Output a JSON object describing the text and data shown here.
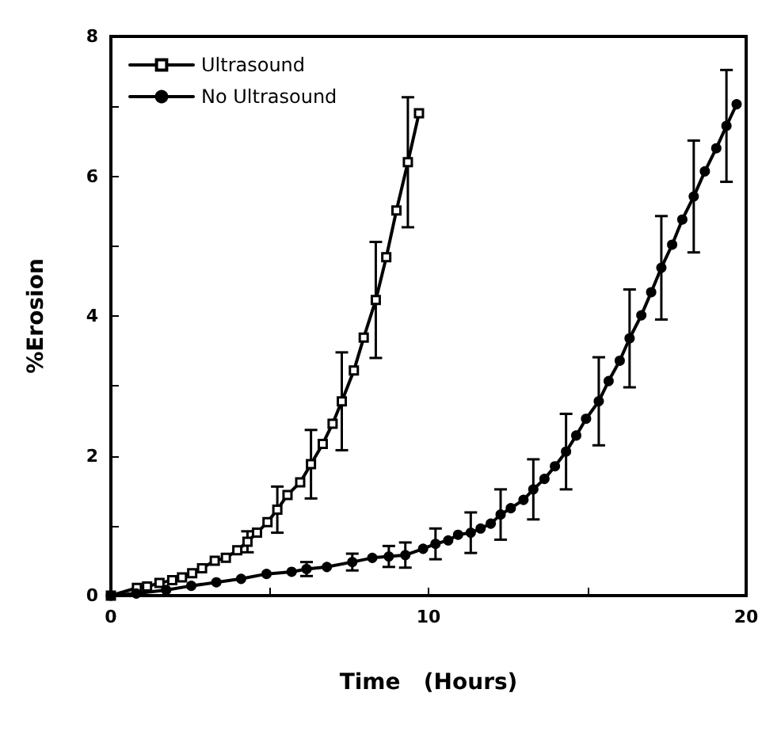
{
  "chart_data": {
    "type": "line",
    "xlabel": "Time   (Hours)",
    "ylabel": "%Erosion",
    "xlim": [
      0,
      20
    ],
    "ylim": [
      0,
      8
    ],
    "xticks": [
      0,
      {
        "value": 5,
        "label": null
      },
      10,
      {
        "value": 15,
        "label": null
      },
      20
    ],
    "yticks": [
      0,
      {
        "value": 1,
        "label": null
      },
      2,
      {
        "value": 3,
        "label": null
      },
      4,
      {
        "value": 5,
        "label": null
      },
      6,
      {
        "value": 7,
        "label": null
      },
      8
    ],
    "grid": false,
    "legend": "top left",
    "line_style": "solid",
    "series": [
      {
        "name": "Ultrasound",
        "color": "#000000",
        "marker": "square",
        "x": [
          0,
          0.82,
          1.14,
          1.53,
          1.93,
          2.24,
          2.56,
          2.87,
          3.27,
          3.62,
          3.98,
          4.3,
          4.6,
          4.93,
          5.24,
          5.56,
          5.96,
          6.3,
          6.67,
          6.98,
          7.27,
          7.65,
          7.96,
          8.34,
          8.67,
          8.99,
          9.35,
          9.7
        ],
        "values": [
          0,
          0.11,
          0.13,
          0.18,
          0.22,
          0.26,
          0.32,
          0.39,
          0.5,
          0.54,
          0.65,
          0.77,
          0.9,
          1.05,
          1.23,
          1.44,
          1.62,
          1.88,
          2.17,
          2.46,
          2.78,
          3.22,
          3.69,
          4.23,
          4.84,
          5.51,
          6.2,
          6.9
        ],
        "errors": [
          null,
          null,
          null,
          null,
          null,
          null,
          null,
          null,
          null,
          null,
          null,
          0.15,
          null,
          null,
          0.33,
          null,
          null,
          0.49,
          null,
          null,
          0.7,
          null,
          null,
          0.83,
          null,
          null,
          0.93,
          null
        ]
      },
      {
        "name": "No Ultrasound",
        "color": "#000000",
        "marker": "circle",
        "x": [
          0,
          0.8,
          1.74,
          2.53,
          3.32,
          4.1,
          4.9,
          5.69,
          6.16,
          6.8,
          7.6,
          8.23,
          8.75,
          9.27,
          9.83,
          10.22,
          10.62,
          10.93,
          11.33,
          11.64,
          11.96,
          12.27,
          12.59,
          12.99,
          13.3,
          13.65,
          13.98,
          14.33,
          14.65,
          14.96,
          15.36,
          15.67,
          16.02,
          16.33,
          16.7,
          17.01,
          17.33,
          17.67,
          17.99,
          18.35,
          18.7,
          19.06,
          19.38,
          19.7
        ],
        "values": [
          0,
          0.03,
          0.08,
          0.14,
          0.19,
          0.24,
          0.31,
          0.34,
          0.38,
          0.41,
          0.48,
          0.54,
          0.56,
          0.58,
          0.67,
          0.74,
          0.79,
          0.87,
          0.9,
          0.96,
          1.03,
          1.16,
          1.25,
          1.37,
          1.52,
          1.67,
          1.85,
          2.06,
          2.29,
          2.53,
          2.78,
          3.07,
          3.36,
          3.68,
          4.01,
          4.34,
          4.69,
          5.02,
          5.38,
          5.71,
          6.07,
          6.4,
          6.72,
          7.03
        ],
        "errors": [
          null,
          null,
          null,
          null,
          null,
          null,
          null,
          null,
          0.1,
          null,
          0.12,
          null,
          0.15,
          0.18,
          null,
          0.22,
          null,
          null,
          0.29,
          null,
          null,
          0.36,
          null,
          null,
          0.43,
          null,
          null,
          0.54,
          null,
          null,
          0.63,
          null,
          null,
          0.7,
          null,
          null,
          0.74,
          null,
          null,
          0.8,
          null,
          null,
          0.8,
          null
        ]
      }
    ]
  }
}
